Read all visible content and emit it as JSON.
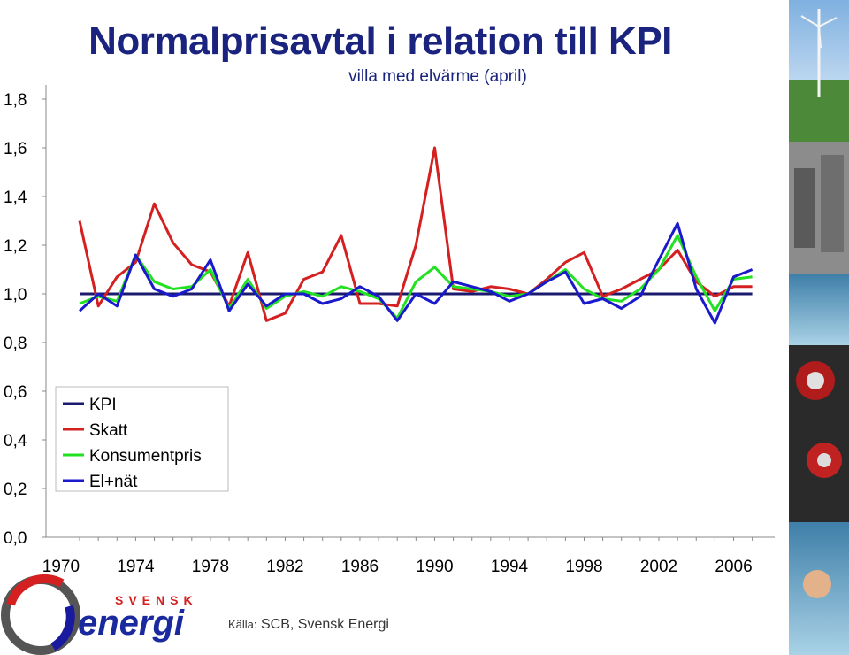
{
  "header": {
    "title": "Normalprisavtal i relation till KPI",
    "subtitle": "villa med elvärme (april)"
  },
  "source": {
    "label": "Källa:",
    "text": "SCB, Svensk Energi"
  },
  "logo": {
    "top_text": "SVENSK",
    "main_text": "energi"
  },
  "colors": {
    "KPI": "#1a1a6e",
    "Skatt": "#d42020",
    "Konsumentpris": "#22e022",
    "El+nät": "#1a1acc"
  },
  "chart_data": {
    "type": "line",
    "title": "Normalprisavtal i relation till KPI",
    "subtitle": "villa med elvärme (april)",
    "ylim": [
      0,
      1.8
    ],
    "yticks": [
      "0,0",
      "0,2",
      "0,4",
      "0,6",
      "0,8",
      "1,0",
      "1,2",
      "1,4",
      "1,6",
      "1,8"
    ],
    "xticks": [
      "1970",
      "1974",
      "1978",
      "1982",
      "1986",
      "1990",
      "1994",
      "1998",
      "2002",
      "2006"
    ],
    "x": [
      1971,
      1972,
      1973,
      1974,
      1975,
      1976,
      1977,
      1978,
      1979,
      1980,
      1981,
      1982,
      1983,
      1984,
      1985,
      1986,
      1987,
      1988,
      1989,
      1990,
      1991,
      1992,
      1993,
      1994,
      1995,
      1996,
      1997,
      1998,
      1999,
      2000,
      2001,
      2002,
      2003,
      2004,
      2005,
      2006,
      2007
    ],
    "legend_position": "lower-left",
    "series": [
      {
        "name": "KPI",
        "values": [
          1.0,
          1.0,
          1.0,
          1.0,
          1.0,
          1.0,
          1.0,
          1.0,
          1.0,
          1.0,
          1.0,
          1.0,
          1.0,
          1.0,
          1.0,
          1.0,
          1.0,
          1.0,
          1.0,
          1.0,
          1.0,
          1.0,
          1.0,
          1.0,
          1.0,
          1.0,
          1.0,
          1.0,
          1.0,
          1.0,
          1.0,
          1.0,
          1.0,
          1.0,
          1.0,
          1.0,
          1.0
        ]
      },
      {
        "name": "Skatt",
        "values": [
          1.3,
          0.95,
          1.07,
          1.13,
          1.37,
          1.21,
          1.12,
          1.09,
          0.95,
          1.17,
          0.89,
          0.92,
          1.06,
          1.09,
          1.24,
          0.96,
          0.96,
          0.95,
          1.2,
          1.6,
          1.02,
          1.01,
          1.03,
          1.02,
          1.0,
          1.06,
          1.13,
          1.17,
          0.99,
          1.02,
          1.06,
          1.1,
          1.18,
          1.05,
          0.99,
          1.03,
          1.03
        ]
      },
      {
        "name": "Konsumentpris",
        "values": [
          0.96,
          0.99,
          0.97,
          1.16,
          1.05,
          1.02,
          1.03,
          1.1,
          0.94,
          1.06,
          0.94,
          0.99,
          1.01,
          0.99,
          1.03,
          1.01,
          0.98,
          0.9,
          1.05,
          1.11,
          1.03,
          1.02,
          1.01,
          0.99,
          1.0,
          1.05,
          1.1,
          1.02,
          0.98,
          0.97,
          1.02,
          1.1,
          1.24,
          1.07,
          0.93,
          1.06,
          1.07
        ]
      },
      {
        "name": "El+nät",
        "values": [
          0.93,
          1.0,
          0.95,
          1.16,
          1.02,
          0.99,
          1.02,
          1.14,
          0.93,
          1.04,
          0.95,
          1.0,
          1.0,
          0.96,
          0.98,
          1.03,
          0.99,
          0.89,
          1.0,
          0.96,
          1.05,
          1.03,
          1.01,
          0.97,
          1.0,
          1.05,
          1.09,
          0.96,
          0.98,
          0.94,
          0.99,
          1.14,
          1.29,
          1.02,
          0.88,
          1.07,
          1.1
        ]
      }
    ]
  }
}
